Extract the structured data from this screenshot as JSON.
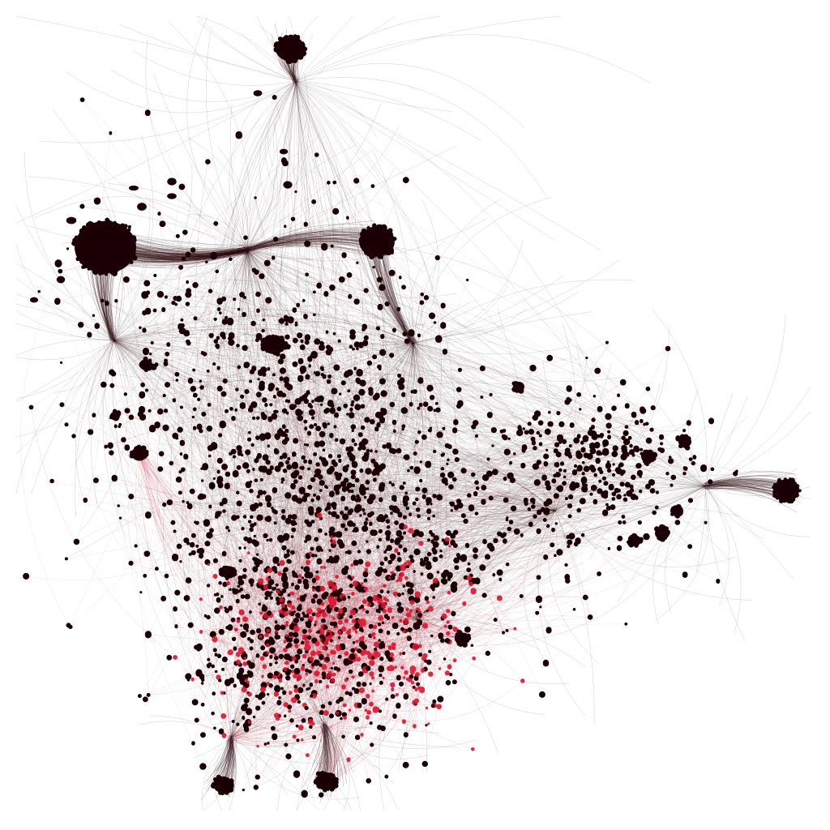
{
  "diagram": {
    "type": "network-graph",
    "background": "#ffffff",
    "node_color": "#1a0004",
    "highlight_node_color": "#e0112b",
    "edge_color": "#2a0a0e",
    "highlight_edge_color": "#c8102e"
  }
}
